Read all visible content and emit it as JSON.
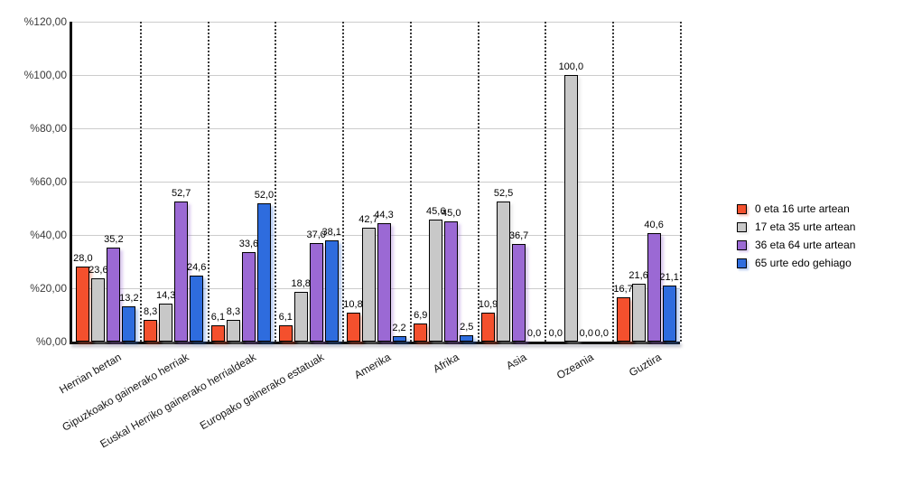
{
  "chart_data": {
    "type": "bar",
    "title": "",
    "categories": [
      "Herrian bertan",
      "Gipuzkoako gainerako herriak",
      "Euskal Herriko gainerako herrialdeak",
      "Europako gainerako estatuak",
      "Amerika",
      "Afrika",
      "Asia",
      "Ozeania",
      "Guztira"
    ],
    "series": [
      {
        "name": "0 eta 16 urte artean",
        "color": "#f4502d",
        "values": [
          28.0,
          8.3,
          6.1,
          6.1,
          10.8,
          6.9,
          10.9,
          0.0,
          16.7
        ]
      },
      {
        "name": "17 eta 35 urte artean",
        "color": "#c8c8c8",
        "values": [
          23.6,
          14.3,
          8.3,
          18.8,
          42.7,
          45.6,
          52.5,
          100.0,
          21.6
        ]
      },
      {
        "name": "36 eta 64 urte artean",
        "color": "#9b69d4",
        "values": [
          35.2,
          52.7,
          33.6,
          37.0,
          44.3,
          45.0,
          36.7,
          0.0,
          40.6
        ]
      },
      {
        "name": "65 urte edo gehiago",
        "color": "#2e6cde",
        "values": [
          13.2,
          24.6,
          52.0,
          38.1,
          2.2,
          2.5,
          0.0,
          0.0,
          21.1
        ]
      }
    ],
    "y_axis": {
      "min": 0,
      "max": 120,
      "step": 20,
      "tick_labels": [
        "%0,00",
        "%20,00",
        "%40,00",
        "%60,00",
        "%80,00",
        "%100,00",
        "%120,00"
      ]
    },
    "value_labels": "shown above each bar, one decimal with comma separator",
    "grid": "horizontal gray gridlines every 20; dotted vertical separators between categories",
    "legend_position": "right",
    "background": "#ffffff"
  }
}
